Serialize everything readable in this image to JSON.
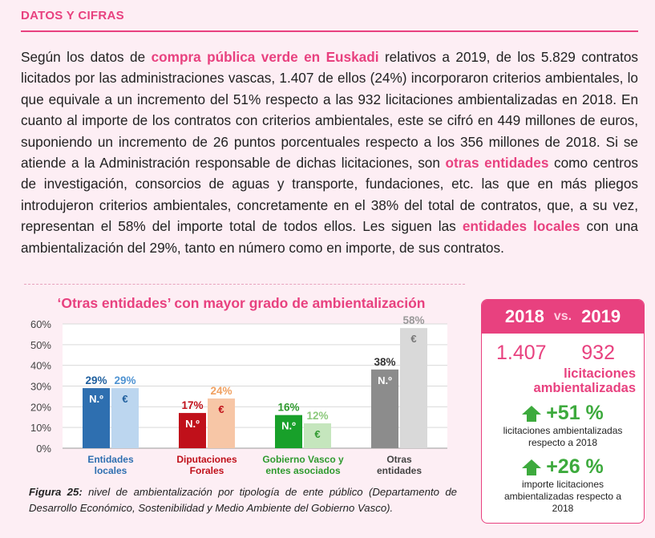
{
  "section": {
    "title": "DATOS Y CIFRAS"
  },
  "paragraph": {
    "s1": "Según los datos de ",
    "h1": "compra pública verde en Euskadi",
    "s2": " relativos a 2019, de los 5.829 contratos licitados por las administraciones vascas, 1.407 de ellos (24%) incorporaron criterios ambientales, lo que equivale a un incremento del 51% respecto a las 932 licitaciones ambientalizadas en 2018. En cuanto al importe de los contratos con criterios ambientales, este se cifró en 449 millones de euros, suponiendo un incremento de 26 puntos porcentuales respecto a los 356 millones de 2018. Si se atiende a la Administración responsable de dichas licitaciones, son ",
    "h2": "otras entidades",
    "s3": " como centros de investigación, consorcios de aguas y transporte, fundaciones, etc. las que en más pliegos introdujeron criterios ambientales, concretamente en el 38% del total de contratos, que, a su vez, representan el 58% del importe total de todos ellos. Les siguen las ",
    "h3": "entidades locales",
    "s4": " con una ambientalización del 29%, tanto en número como en importe, de sus contratos."
  },
  "chart_data": {
    "type": "bar",
    "title": "‘Otras entidades’ con mayor grado de ambientalización",
    "ylim": [
      0,
      60
    ],
    "yticks": [
      "0%",
      "10%",
      "20%",
      "30%",
      "40%",
      "50%",
      "60%"
    ],
    "grid": true,
    "categories": [
      "Entidades locales",
      "Diputaciones Forales",
      "Gobierno Vasco y entes asociados",
      "Otras entidades"
    ],
    "category_lines": [
      [
        "Entidades",
        "locales"
      ],
      [
        "Diputaciones",
        "Forales"
      ],
      [
        "Gobierno Vasco y",
        "entes asociados"
      ],
      [
        "Otras",
        "entidades"
      ]
    ],
    "category_colors": [
      "#2e6fb0",
      "#c0101a",
      "#2f9a2f",
      "#444444"
    ],
    "series": [
      {
        "name": "N.º",
        "values": [
          29,
          17,
          16,
          38
        ],
        "labels": [
          "29%",
          "17%",
          "16%",
          "38%"
        ],
        "colors": [
          "#2e6fb0",
          "#c0101a",
          "#18a02a",
          "#8c8c8c"
        ],
        "label_colors": [
          "#1f5f9e",
          "#c0101a",
          "#2f9a2f",
          "#333333"
        ]
      },
      {
        "name": "€",
        "values": [
          29,
          24,
          12,
          58
        ],
        "labels": [
          "29%",
          "24%",
          "12%",
          "58%"
        ],
        "colors": [
          "#bcd6ef",
          "#f7c6a6",
          "#c5e6bd",
          "#d9d9d9"
        ],
        "label_colors": [
          "#4f93d2",
          "#f0a060",
          "#8cc97c",
          "#999999"
        ]
      }
    ]
  },
  "caption": {
    "bold": "Figura 25:",
    "text": " nivel de ambientalización por tipología de ente público (Departamento de Desarrollo Económico, Sostenibilidad y Medio Ambiente del Gobierno Vasco)."
  },
  "panel": {
    "year1": "2018",
    "vs": "vs.",
    "year2": "2019",
    "num1": "1.407",
    "num2": "932",
    "lic_line1": "licitaciones",
    "lic_line2": "ambientalizadas",
    "stat1_pct": "+51 %",
    "stat1_line1": "licitaciones ambientalizadas",
    "stat1_line2": "respecto a 2018",
    "stat2_pct": "+26 %",
    "stat2_line1": "importe licitaciones",
    "stat2_line2": "ambientalizadas respecto a",
    "stat2_line3": "2018",
    "colors": {
      "accent": "#e8417f",
      "green": "#3daa3d"
    }
  }
}
